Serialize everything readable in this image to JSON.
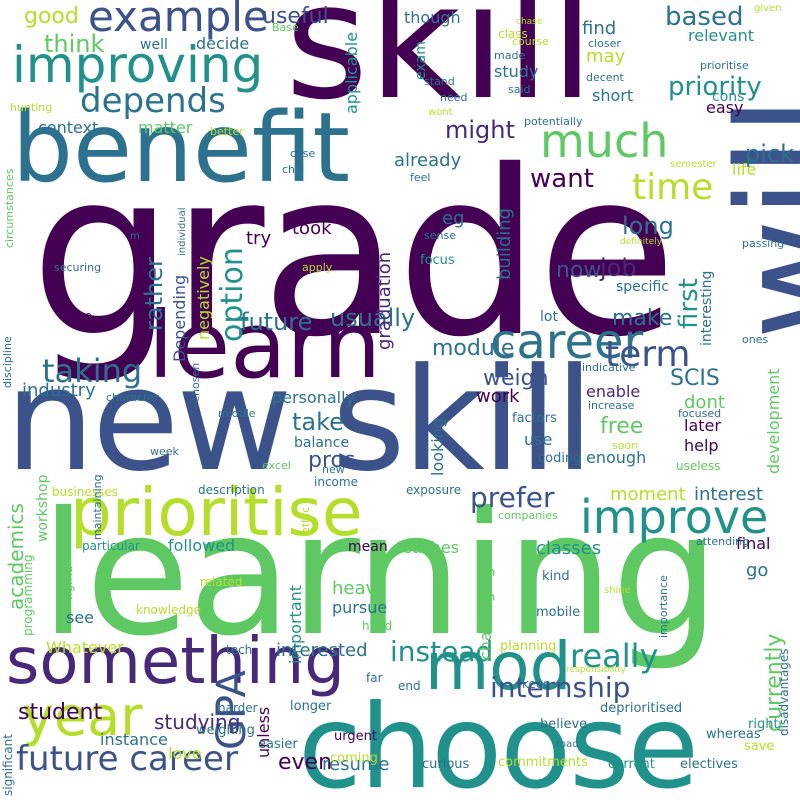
{
  "palette": {
    "p1": "#440154",
    "p2": "#3b528b",
    "p3": "#21918c",
    "p4": "#5ec962",
    "p5": "#b5de2b",
    "p6": "#2c728e",
    "p7": "#482878"
  },
  "words": [
    {
      "text": "grade",
      "color": "#440154"
    },
    {
      "text": "skill",
      "color": "#440154"
    },
    {
      "text": "learning",
      "color": "#5ec962"
    },
    {
      "text": "new skill",
      "color": "#3b528b"
    },
    {
      "text": "will",
      "color": "#3b528b"
    },
    {
      "text": "choose",
      "color": "#21918c"
    },
    {
      "text": "benefit",
      "color": "#2c728e"
    },
    {
      "text": "learn",
      "color": "#440154"
    },
    {
      "text": "prioritise",
      "color": "#b5de2b"
    },
    {
      "text": "something",
      "color": "#482878"
    },
    {
      "text": "improving",
      "color": "#21918c"
    },
    {
      "text": "mod",
      "color": "#21918c"
    },
    {
      "text": "example",
      "color": "#3b528b"
    },
    {
      "text": "improve",
      "color": "#21918c"
    },
    {
      "text": "year",
      "color": "#b5de2b"
    },
    {
      "text": "much",
      "color": "#5ec962"
    },
    {
      "text": "career",
      "color": "#2c728e"
    },
    {
      "text": "depends",
      "color": "#2c728e"
    },
    {
      "text": "future career",
      "color": "#3b528b"
    },
    {
      "text": "term",
      "color": "#3b528b"
    },
    {
      "text": "time",
      "color": "#b5de2b"
    },
    {
      "text": "internship",
      "color": "#3b528b"
    },
    {
      "text": "GPA",
      "color": "#3b528b"
    },
    {
      "text": "taking",
      "color": "#2c728e"
    },
    {
      "text": "really",
      "color": "#21918c"
    },
    {
      "text": "instead",
      "color": "#21918c"
    },
    {
      "text": "prefer",
      "color": "#3b528b"
    },
    {
      "text": "option",
      "color": "#21918c"
    },
    {
      "text": "future",
      "color": "#2c728e"
    },
    {
      "text": "module",
      "color": "#2c728e"
    },
    {
      "text": "usually",
      "color": "#2c728e"
    },
    {
      "text": "based",
      "color": "#2c728e"
    },
    {
      "text": "priority",
      "color": "#21918c"
    },
    {
      "text": "want",
      "color": "#440154"
    },
    {
      "text": "might",
      "color": "#482878"
    },
    {
      "text": "pick",
      "color": "#2c728e"
    },
    {
      "text": "first",
      "color": "#21918c"
    },
    {
      "text": "job",
      "color": "#482878"
    },
    {
      "text": "long",
      "color": "#2c728e"
    },
    {
      "text": "rather",
      "color": "#2c728e"
    },
    {
      "text": "think",
      "color": "#5ec962"
    },
    {
      "text": "good",
      "color": "#b5de2b"
    },
    {
      "text": "useful",
      "color": "#3b528b"
    },
    {
      "text": "student",
      "color": "#440154"
    },
    {
      "text": "currently",
      "color": "#5ec962"
    },
    {
      "text": "take",
      "color": "#2c728e"
    },
    {
      "text": "pros",
      "color": "#3b528b"
    },
    {
      "text": "weigh",
      "color": "#3b528b"
    },
    {
      "text": "free",
      "color": "#5ec962"
    },
    {
      "text": "now",
      "color": "#3b528b"
    },
    {
      "text": "make",
      "color": "#2c728e"
    },
    {
      "text": "SCIS",
      "color": "#2c728e"
    },
    {
      "text": "studying",
      "color": "#482878"
    },
    {
      "text": "even",
      "color": "#440154"
    },
    {
      "text": "resume",
      "color": "#2c728e"
    },
    {
      "text": "interested",
      "color": "#2c728e"
    },
    {
      "text": "classes",
      "color": "#21918c"
    },
    {
      "text": "interest",
      "color": "#2c728e"
    },
    {
      "text": "moment",
      "color": "#b5de2b"
    },
    {
      "text": "academics",
      "color": "#5ec962"
    },
    {
      "text": "industry",
      "color": "#2c728e"
    },
    {
      "text": "context",
      "color": "#2c728e"
    },
    {
      "text": "matter",
      "color": "#5ec962"
    },
    {
      "text": "already",
      "color": "#2c728e"
    },
    {
      "text": "eg",
      "color": "#2c728e"
    },
    {
      "text": "try",
      "color": "#440154"
    },
    {
      "text": "took",
      "color": "#440154"
    },
    {
      "text": "building",
      "color": "#2c728e"
    },
    {
      "text": "graduation",
      "color": "#482878"
    },
    {
      "text": "Depending",
      "color": "#3b528b"
    },
    {
      "text": "negatively",
      "color": "#b5de2b"
    },
    {
      "text": "work",
      "color": "#440154"
    },
    {
      "text": "enable",
      "color": "#482878"
    },
    {
      "text": "dont",
      "color": "#5ec962"
    },
    {
      "text": "later",
      "color": "#440154"
    },
    {
      "text": "help",
      "color": "#440154"
    },
    {
      "text": "development",
      "color": "#5ec962"
    },
    {
      "text": "enough",
      "color": "#2c728e"
    },
    {
      "text": "use",
      "color": "#2c728e"
    },
    {
      "text": "heavy",
      "color": "#5ec962"
    },
    {
      "text": "pursue",
      "color": "#2c728e"
    },
    {
      "text": "teaches",
      "color": "#5ec962"
    },
    {
      "text": "final",
      "color": "#440154"
    },
    {
      "text": "go",
      "color": "#2c728e"
    },
    {
      "text": "looking",
      "color": "#2c728e"
    },
    {
      "text": "balance",
      "color": "#2c728e"
    },
    {
      "text": "personally",
      "color": "#2c728e"
    },
    {
      "text": "important",
      "color": "#21918c"
    },
    {
      "text": "followed",
      "color": "#21918c"
    },
    {
      "text": "mean",
      "color": "#440154"
    },
    {
      "text": "challenging",
      "color": "#5ec962"
    },
    {
      "text": "workshop",
      "color": "#5ec962"
    },
    {
      "text": "Whatever",
      "color": "#b5de2b"
    },
    {
      "text": "unless",
      "color": "#440154"
    },
    {
      "text": "instance",
      "color": "#2c728e"
    },
    {
      "text": "love",
      "color": "#b5de2b"
    },
    {
      "text": "see",
      "color": "#2c728e"
    },
    {
      "text": "easy",
      "color": "#440154"
    },
    {
      "text": "cons",
      "color": "#21918c"
    },
    {
      "text": "short",
      "color": "#2c728e"
    },
    {
      "text": "study",
      "color": "#2c728e"
    },
    {
      "text": "may",
      "color": "#b5de2b"
    },
    {
      "text": "find",
      "color": "#2c728e"
    },
    {
      "text": "relevant",
      "color": "#21918c"
    },
    {
      "text": "though",
      "color": "#2c728e"
    },
    {
      "text": "well",
      "color": "#2c728e"
    },
    {
      "text": "decide",
      "color": "#2c728e"
    },
    {
      "text": "applicable",
      "color": "#21918c"
    },
    {
      "text": "exam",
      "color": "#21918c"
    },
    {
      "text": "life",
      "color": "#b5de2b"
    },
    {
      "text": "interesting",
      "color": "#2c728e"
    },
    {
      "text": "specific",
      "color": "#2c728e"
    },
    {
      "text": "lot",
      "color": "#2c728e"
    },
    {
      "text": "focus",
      "color": "#21918c"
    },
    {
      "text": "factors",
      "color": "#2c728e"
    },
    {
      "text": "coding",
      "color": "#2c728e"
    },
    {
      "text": "mobile",
      "color": "#2c728e"
    },
    {
      "text": "kind",
      "color": "#2c728e"
    },
    {
      "text": "planning",
      "color": "#b5de2b"
    },
    {
      "text": "deprioritised",
      "color": "#2c728e"
    },
    {
      "text": "believe",
      "color": "#2c728e"
    },
    {
      "text": "curious",
      "color": "#2c728e"
    },
    {
      "text": "commitments",
      "color": "#b5de2b"
    },
    {
      "text": "current",
      "color": "#21918c"
    },
    {
      "text": "electives",
      "color": "#2c728e"
    },
    {
      "text": "disadvantages",
      "color": "#2c728e"
    },
    {
      "text": "whereas",
      "color": "#2c728e"
    },
    {
      "text": "right",
      "color": "#21918c"
    },
    {
      "text": "save",
      "color": "#b5de2b"
    },
    {
      "text": "road",
      "color": "#2c728e"
    },
    {
      "text": "urgent",
      "color": "#440154"
    },
    {
      "text": "coming",
      "color": "#b5de2b"
    },
    {
      "text": "longer",
      "color": "#2c728e"
    },
    {
      "text": "weighing",
      "color": "#2c728e"
    },
    {
      "text": "easier",
      "color": "#2c728e"
    },
    {
      "text": "end",
      "color": "#2c728e"
    },
    {
      "text": "keen",
      "color": "#2c728e"
    },
    {
      "text": "far",
      "color": "#2c728e"
    },
    {
      "text": "significant",
      "color": "#2c728e"
    },
    {
      "text": "harder",
      "color": "#2c728e"
    },
    {
      "text": "programming",
      "color": "#5ec962"
    },
    {
      "text": "knowledge",
      "color": "#b5de2b"
    },
    {
      "text": "particular",
      "color": "#21918c"
    },
    {
      "text": "related",
      "color": "#b5de2b"
    },
    {
      "text": "figma",
      "color": "#5ec962"
    },
    {
      "text": "tech",
      "color": "#2c728e"
    },
    {
      "text": "hand",
      "color": "#5ec962"
    },
    {
      "text": "businesses",
      "color": "#b5de2b"
    },
    {
      "text": "description",
      "color": "#2c728e"
    },
    {
      "text": "exposure",
      "color": "#2c728e"
    },
    {
      "text": "income",
      "color": "#2c728e"
    },
    {
      "text": "new",
      "color": "#2c728e"
    },
    {
      "text": "ethic",
      "color": "#b5de2b"
    },
    {
      "text": "companies",
      "color": "#5ec962"
    },
    {
      "text": "attending",
      "color": "#2c728e"
    },
    {
      "text": "importance",
      "color": "#2c728e"
    },
    {
      "text": "responsibility",
      "color": "#b5de2b"
    },
    {
      "text": "shine",
      "color": "#b5de2b"
    },
    {
      "text": "useless",
      "color": "#5ec962"
    },
    {
      "text": "soon",
      "color": "#b5de2b"
    },
    {
      "text": "excel",
      "color": "#5ec962"
    },
    {
      "text": "week",
      "color": "#2c728e"
    },
    {
      "text": "maintaining",
      "color": "#2c728e"
    },
    {
      "text": "character",
      "color": "#2c728e"
    },
    {
      "text": "middle",
      "color": "#2c728e"
    },
    {
      "text": "chosen",
      "color": "#2c728e"
    },
    {
      "text": "discipline",
      "color": "#2c728e"
    },
    {
      "text": "niche",
      "color": "#440154"
    },
    {
      "text": "securing",
      "color": "#2c728e"
    },
    {
      "text": "apply",
      "color": "#b5de2b"
    },
    {
      "text": "sense",
      "color": "#2c728e"
    },
    {
      "text": "indicative",
      "color": "#2c728e"
    },
    {
      "text": "focused",
      "color": "#2c728e"
    },
    {
      "text": "increase",
      "color": "#2c728e"
    },
    {
      "text": "ones",
      "color": "#2c728e"
    },
    {
      "text": "passing",
      "color": "#2c728e"
    },
    {
      "text": "definitely",
      "color": "#b5de2b"
    },
    {
      "text": "semester",
      "color": "#b5de2b"
    },
    {
      "text": "feel",
      "color": "#2c728e"
    },
    {
      "text": "chill",
      "color": "#2c728e"
    },
    {
      "text": "case",
      "color": "#2c728e"
    },
    {
      "text": "better",
      "color": "#b5de2b"
    },
    {
      "text": "potentially",
      "color": "#2c728e"
    },
    {
      "text": "need",
      "color": "#2c728e"
    },
    {
      "text": "wont",
      "color": "#b5de2b"
    },
    {
      "text": "said",
      "color": "#2c728e"
    },
    {
      "text": "stand",
      "color": "#2c728e"
    },
    {
      "text": "decent",
      "color": "#2c728e"
    },
    {
      "text": "made",
      "color": "#2c728e"
    },
    {
      "text": "closer",
      "color": "#2c728e"
    },
    {
      "text": "course",
      "color": "#b5de2b"
    },
    {
      "text": "class",
      "color": "#b5de2b"
    },
    {
      "text": "chase",
      "color": "#b5de2b"
    },
    {
      "text": "given",
      "color": "#b5de2b"
    },
    {
      "text": "Base",
      "color": "#5ec962"
    },
    {
      "text": "hunting",
      "color": "#b5de2b"
    },
    {
      "text": "circumstances",
      "color": "#5ec962"
    },
    {
      "text": "individual",
      "color": "#2c728e"
    },
    {
      "text": "m",
      "color": "#2c728e"
    },
    {
      "text": "prioritise",
      "color": "#2c728e"
    }
  ]
}
